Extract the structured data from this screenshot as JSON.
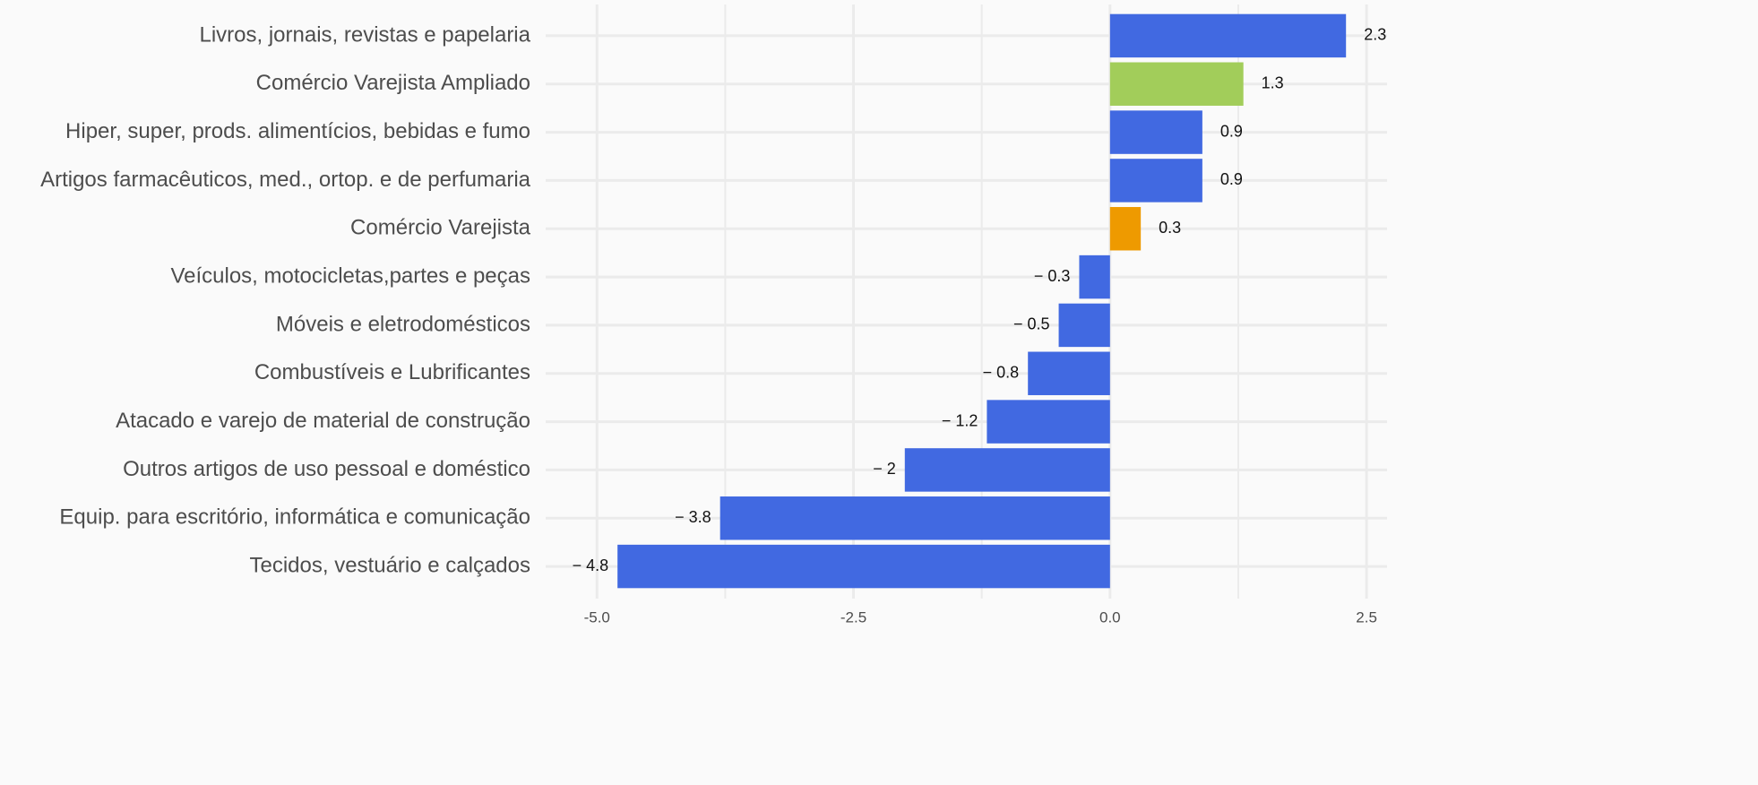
{
  "chart_data": {
    "type": "bar",
    "orientation": "horizontal",
    "categories": [
      "Livros, jornais, revistas e papelaria",
      "Comércio Varejista Ampliado",
      "Hiper, super, prods.  alimentícios, bebidas e fumo",
      "Artigos farmacêuticos, med., ortop. e de perfumaria",
      "Comércio Varejista",
      "Veículos, motocicletas,partes e peças",
      "Móveis e eletrodomésticos",
      "Combustíveis e Lubrificantes",
      "Atacado e varejo de material de construção",
      "Outros artigos de uso pessoal e doméstico",
      "Equip. para escritório, informática e comunicação",
      "Tecidos, vestuário e calçados"
    ],
    "values": [
      2.3,
      1.3,
      0.9,
      0.9,
      0.3,
      -0.3,
      -0.5,
      -0.8,
      -1.2,
      -2,
      -3.8,
      -4.8
    ],
    "value_labels": [
      "2.3",
      "1.3",
      "0.9",
      "0.9",
      "0.3",
      "− 0.3",
      "− 0.5",
      "− 0.8",
      "− 1.2",
      "− 2",
      "− 3.8",
      "− 4.8"
    ],
    "colors": [
      "#4169e1",
      "#a2cd5a",
      "#4169e1",
      "#4169e1",
      "#ee9a00",
      "#4169e1",
      "#4169e1",
      "#4169e1",
      "#4169e1",
      "#4169e1",
      "#4169e1",
      "#4169e1"
    ],
    "xlim": [
      -5.5,
      2.7
    ],
    "xticks": [
      {
        "value": -5,
        "label": "-5.0"
      },
      -2.5,
      {
        "value": 0,
        "label": "0.0"
      },
      2.5
    ],
    "xminor": [
      -3.75,
      -1.25,
      1.25
    ],
    "grid": true
  }
}
